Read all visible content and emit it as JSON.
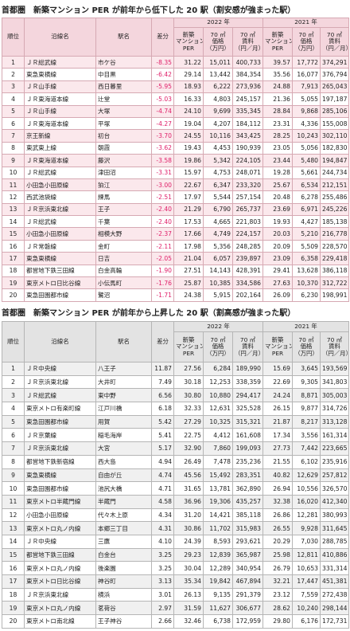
{
  "tables": [
    {
      "title": "首都圏　新築マンション PER が前年から低下した 20 駅（割安感が強まった駅）",
      "header": {
        "rank": "順位",
        "line": "沿線名",
        "station": "駅名",
        "diff": "差分",
        "years": [
          "2022 年",
          "2021 年"
        ],
        "cols": [
          [
            "新築",
            "マンション",
            "PER"
          ],
          [
            "70 ㎡",
            "価格",
            "（万円）"
          ],
          [
            "70 ㎡",
            "賃料",
            "（円／月）"
          ]
        ]
      },
      "rows": [
        [
          "1",
          "ＪＲ総武線",
          "市ケ谷",
          "-8.35",
          "31.22",
          "15,011",
          "400,733",
          "39.57",
          "17,772",
          "374,291"
        ],
        [
          "2",
          "東急東横線",
          "中目黒",
          "-6.42",
          "29.14",
          "13,442",
          "384,354",
          "35.56",
          "16,077",
          "376,794"
        ],
        [
          "3",
          "ＪＲ山手線",
          "西日暮里",
          "-5.95",
          "18.93",
          "6,222",
          "273,936",
          "24.88",
          "7,913",
          "265,043"
        ],
        [
          "4",
          "ＪＲ東海道本線",
          "辻堂",
          "-5.03",
          "16.33",
          "4,803",
          "245,157",
          "21.36",
          "5,055",
          "197,187"
        ],
        [
          "5",
          "ＪＲ山手線",
          "大塚",
          "-4.74",
          "24.10",
          "9,699",
          "335,345",
          "28.84",
          "9,868",
          "285,106"
        ],
        [
          "6",
          "ＪＲ東海道本線",
          "平塚",
          "-4.27",
          "19.04",
          "4,207",
          "184,112",
          "23.31",
          "4,336",
          "155,008"
        ],
        [
          "7",
          "京王新線",
          "初台",
          "-3.70",
          "24.55",
          "10,116",
          "343,425",
          "28.25",
          "10,243",
          "302,110"
        ],
        [
          "8",
          "東武東上線",
          "朝霞",
          "-3.62",
          "19.43",
          "4,453",
          "190,939",
          "23.05",
          "5,056",
          "182,830"
        ],
        [
          "9",
          "ＪＲ東海道本線",
          "藤沢",
          "-3.58",
          "19.86",
          "5,342",
          "224,105",
          "23.44",
          "5,480",
          "194,847"
        ],
        [
          "10",
          "ＪＲ総武線",
          "津田沼",
          "-3.31",
          "15.97",
          "4,753",
          "248,071",
          "19.28",
          "5,661",
          "244,734"
        ],
        [
          "11",
          "小田急小田原線",
          "狛江",
          "-3.00",
          "22.67",
          "6,347",
          "233,320",
          "25.67",
          "6,534",
          "212,151"
        ],
        [
          "12",
          "西武池袋線",
          "練馬",
          "-2.51",
          "17.97",
          "5,544",
          "257,154",
          "20.48",
          "6,278",
          "255,486"
        ],
        [
          "13",
          "ＪＲ京浜東北線",
          "王子",
          "-2.40",
          "21.29",
          "6,790",
          "265,737",
          "23.69",
          "6,971",
          "245,226"
        ],
        [
          "14",
          "ＪＲ総武線",
          "千葉",
          "-2.40",
          "17.53",
          "4,665",
          "221,803",
          "19.93",
          "4,427",
          "185,138"
        ],
        [
          "15",
          "小田急小田原線",
          "相模大野",
          "-2.37",
          "17.66",
          "4,749",
          "224,157",
          "20.03",
          "5,210",
          "216,778"
        ],
        [
          "16",
          "ＪＲ常磐線",
          "金町",
          "-2.11",
          "17.98",
          "5,356",
          "248,285",
          "20.09",
          "5,509",
          "228,570"
        ],
        [
          "17",
          "東急東横線",
          "日吉",
          "-2.05",
          "21.04",
          "6,057",
          "239,897",
          "23.09",
          "6,358",
          "229,418"
        ],
        [
          "18",
          "都営地下鉄三田線",
          "白金高輪",
          "-1.90",
          "27.51",
          "14,143",
          "428,391",
          "29.41",
          "13,628",
          "386,118"
        ],
        [
          "19",
          "東京メトロ日比谷線",
          "小伝馬町",
          "-1.76",
          "25.87",
          "10,385",
          "334,586",
          "27.63",
          "10,370",
          "312,722"
        ],
        [
          "20",
          "東急田園都市線",
          "鷺沼",
          "-1.71",
          "24.38",
          "5,915",
          "202,164",
          "26.09",
          "6,230",
          "198,991"
        ]
      ]
    },
    {
      "title": "首都圏　新築マンション PER が前年から上昇した 20 駅（割高感が強まった駅）",
      "header": {
        "rank": "順位",
        "line": "沿線名",
        "station": "駅名",
        "diff": "差分",
        "years": [
          "2022 年",
          "2021 年"
        ],
        "cols": [
          [
            "新築",
            "マンション",
            "PER"
          ],
          [
            "70 ㎡",
            "価格",
            "（万円）"
          ],
          [
            "70 ㎡",
            "賃料",
            "（円／月）"
          ]
        ]
      },
      "rows": [
        [
          "1",
          "ＪＲ中央線",
          "八王子",
          "11.87",
          "27.56",
          "6,284",
          "189,990",
          "15.69",
          "3,645",
          "193,569"
        ],
        [
          "2",
          "ＪＲ京浜東北線",
          "大井町",
          "7.49",
          "30.18",
          "12,253",
          "338,359",
          "22.69",
          "9,305",
          "341,803"
        ],
        [
          "3",
          "ＪＲ総武線",
          "東中野",
          "6.56",
          "30.80",
          "10,880",
          "294,417",
          "24.24",
          "8,871",
          "305,003"
        ],
        [
          "4",
          "東京メトロ有楽町線",
          "江戸川橋",
          "6.18",
          "32.33",
          "12,631",
          "325,528",
          "26.15",
          "9,877",
          "314,726"
        ],
        [
          "5",
          "東急田園都市線",
          "用賀",
          "5.42",
          "27.29",
          "10,325",
          "315,321",
          "21.87",
          "8,217",
          "313,128"
        ],
        [
          "6",
          "ＪＲ京葉線",
          "稲毛海岸",
          "5.41",
          "22.75",
          "4,412",
          "161,608",
          "17.34",
          "3,556",
          "161,314"
        ],
        [
          "7",
          "ＪＲ京浜東北線",
          "大宮",
          "5.17",
          "32.90",
          "7,860",
          "199,093",
          "27.73",
          "7,442",
          "223,665"
        ],
        [
          "8",
          "都営地下鉄新宿線",
          "西大島",
          "4.94",
          "26.49",
          "7,478",
          "235,236",
          "21.55",
          "6,102",
          "235,916"
        ],
        [
          "9",
          "東急東横線",
          "自由が丘",
          "4.74",
          "45.56",
          "15,492",
          "283,351",
          "40.82",
          "12,629",
          "257,812"
        ],
        [
          "10",
          "東急田園都市線",
          "池尻大橋",
          "4.71",
          "31.65",
          "13,781",
          "362,890",
          "26.94",
          "10,556",
          "326,570"
        ],
        [
          "11",
          "東京メトロ半蔵門線",
          "半蔵門",
          "4.58",
          "36.96",
          "19,306",
          "435,257",
          "32.38",
          "16,020",
          "412,340"
        ],
        [
          "12",
          "小田急小田原線",
          "代々木上原",
          "4.34",
          "31.20",
          "14,421",
          "385,118",
          "26.86",
          "12,281",
          "380,993"
        ],
        [
          "13",
          "東京メトロ丸ノ内線",
          "本郷三丁目",
          "4.31",
          "30.86",
          "11,702",
          "315,983",
          "26.55",
          "9,928",
          "311,645"
        ],
        [
          "14",
          "ＪＲ中央線",
          "三鷹",
          "4.10",
          "24.39",
          "8,593",
          "293,621",
          "20.29",
          "7,030",
          "288,785"
        ],
        [
          "15",
          "都営地下鉄三田線",
          "白金台",
          "3.25",
          "29.23",
          "12,839",
          "365,987",
          "25.98",
          "12,811",
          "410,886"
        ],
        [
          "16",
          "東京メトロ丸ノ内線",
          "後楽園",
          "3.25",
          "30.04",
          "12,289",
          "340,954",
          "26.79",
          "10,653",
          "331,314"
        ],
        [
          "17",
          "東京メトロ日比谷線",
          "神谷町",
          "3.13",
          "35.34",
          "19,842",
          "467,894",
          "32.21",
          "17,447",
          "451,381"
        ],
        [
          "18",
          "ＪＲ京浜東北線",
          "横浜",
          "3.01",
          "26.13",
          "9,135",
          "291,379",
          "23.12",
          "7,559",
          "272,438"
        ],
        [
          "19",
          "東京メトロ丸ノ内線",
          "茗荷谷",
          "2.97",
          "31.59",
          "11,627",
          "306,677",
          "28.62",
          "10,240",
          "298,144"
        ],
        [
          "20",
          "東京メトロ南北線",
          "王子神谷",
          "2.66",
          "32.46",
          "6,738",
          "172,959",
          "29.80",
          "6,176",
          "172,731"
        ]
      ]
    }
  ]
}
